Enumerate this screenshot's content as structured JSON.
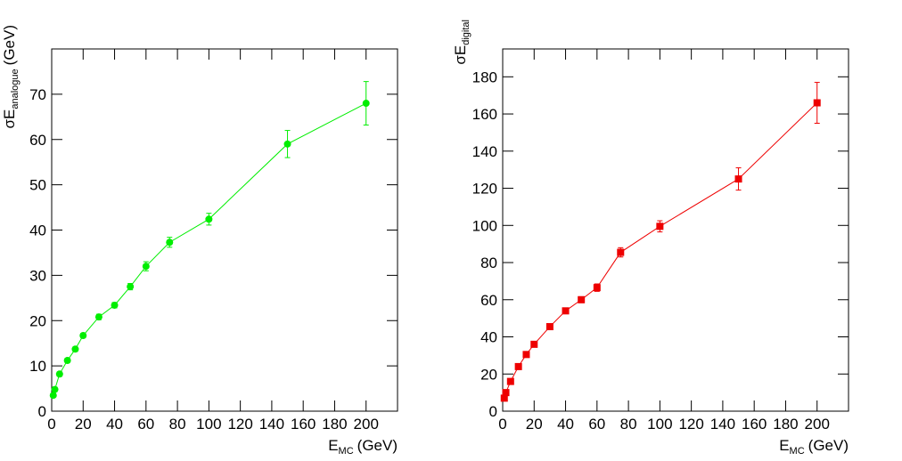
{
  "chart_data": [
    {
      "type": "line",
      "color": "#00ee00",
      "marker": "circle",
      "x_label": "E",
      "x_label_sub": "MC",
      "x_label_unit": "(GeV)",
      "y_label": "σE",
      "y_label_sub": "analogue",
      "y_label_unit": "(GeV)",
      "x": [
        1,
        2,
        5,
        10,
        15,
        20,
        30,
        40,
        50,
        60,
        75,
        100,
        150,
        200
      ],
      "values": [
        3.5,
        4.8,
        8.2,
        11.2,
        13.7,
        16.7,
        20.8,
        23.4,
        27.5,
        32,
        37.3,
        42.4,
        59,
        68
      ],
      "errors": [
        0.4,
        0.5,
        0.5,
        0.5,
        0.5,
        0.5,
        0.6,
        0.6,
        0.7,
        1,
        1.1,
        1.3,
        3,
        4.8
      ],
      "xlim": [
        0,
        220
      ],
      "xticks": [
        0,
        20,
        40,
        60,
        80,
        100,
        120,
        140,
        160,
        180,
        200
      ],
      "ylim": [
        0,
        80
      ],
      "yticks": [
        0,
        10,
        20,
        30,
        40,
        50,
        60,
        70
      ]
    },
    {
      "type": "line",
      "color": "#ee0000",
      "marker": "square",
      "x_label": "E",
      "x_label_sub": "MC",
      "x_label_unit": "(GeV)",
      "y_label": "σE",
      "y_label_sub": "digital",
      "x": [
        1,
        2,
        5,
        10,
        15,
        20,
        30,
        40,
        50,
        60,
        75,
        100,
        150,
        200
      ],
      "values": [
        7,
        10,
        16,
        24,
        30.5,
        36,
        45.5,
        54,
        60,
        66.5,
        85.5,
        99.5,
        125,
        166
      ],
      "errors": [
        0.8,
        0.9,
        1,
        1,
        1.1,
        1.2,
        1.3,
        1.5,
        1.6,
        2,
        2.5,
        3,
        6,
        11
      ],
      "xlim": [
        0,
        220
      ],
      "xticks": [
        0,
        20,
        40,
        60,
        80,
        100,
        120,
        140,
        160,
        180,
        200
      ],
      "ylim": [
        0,
        195
      ],
      "yticks": [
        0,
        20,
        40,
        60,
        80,
        100,
        120,
        140,
        160,
        180
      ]
    }
  ]
}
